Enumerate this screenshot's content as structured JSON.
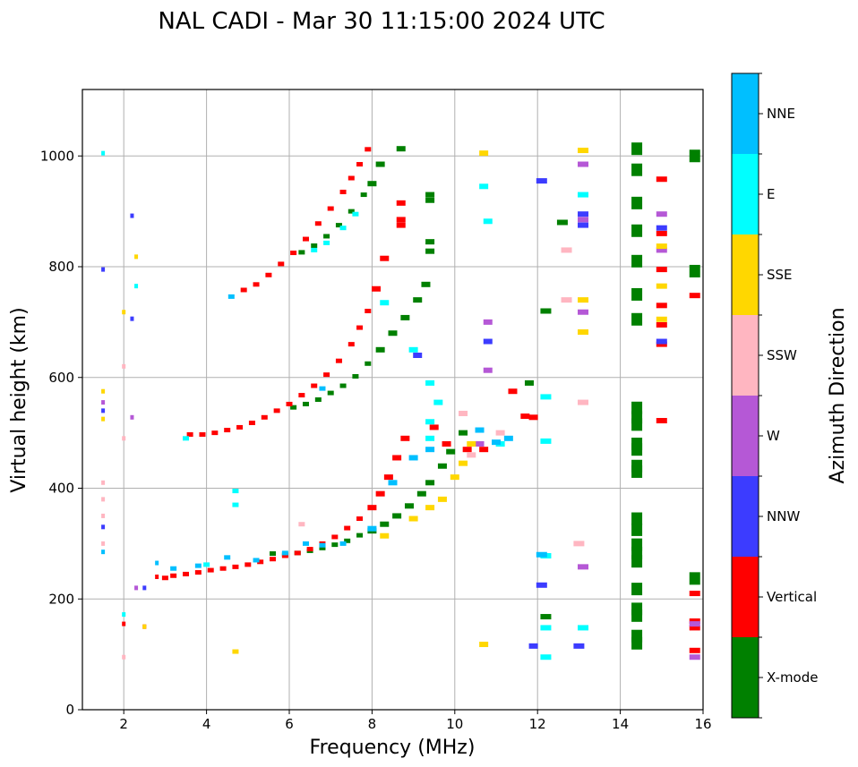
{
  "chart_data": {
    "type": "scatter",
    "subtype": "ionogram",
    "title": "NAL CADI - Mar 30 11:15:00 2024 UTC",
    "xlabel": "Frequency (MHz)",
    "ylabel": "Virtual height (km)",
    "xlim": [
      1,
      16
    ],
    "ylim": [
      0,
      1120
    ],
    "xticks": [
      2,
      4,
      6,
      8,
      10,
      12,
      14,
      16
    ],
    "yticks": [
      0,
      200,
      400,
      600,
      800,
      1000
    ],
    "grid": true,
    "colorbar": {
      "label": "Azimuth Direction",
      "placement": "right",
      "categories": [
        {
          "name": "X-mode",
          "color": "#008000"
        },
        {
          "name": "Vertical",
          "color": "#ff0000"
        },
        {
          "name": "NNW",
          "color": "#3c3cff"
        },
        {
          "name": "W",
          "color": "#b558d6"
        },
        {
          "name": "SSW",
          "color": "#ffb6c1"
        },
        {
          "name": "SSE",
          "color": "#ffd700"
        },
        {
          "name": "E",
          "color": "#00ffff"
        },
        {
          "name": "NNE",
          "color": "#00bfff"
        }
      ]
    },
    "series": [
      {
        "name": "X-mode",
        "points": [
          [
            5.6,
            282
          ],
          [
            5.9,
            280
          ],
          [
            6.2,
            283
          ],
          [
            6.5,
            287
          ],
          [
            6.8,
            292
          ],
          [
            7.1,
            298
          ],
          [
            7.4,
            305
          ],
          [
            7.7,
            315
          ],
          [
            8.0,
            323
          ],
          [
            8.3,
            335
          ],
          [
            8.6,
            350
          ],
          [
            8.9,
            368
          ],
          [
            9.2,
            390
          ],
          [
            9.4,
            410
          ],
          [
            9.7,
            440
          ],
          [
            9.9,
            466
          ],
          [
            10.2,
            500
          ],
          [
            6.1,
            546
          ],
          [
            6.4,
            552
          ],
          [
            6.7,
            560
          ],
          [
            7.0,
            572
          ],
          [
            7.3,
            585
          ],
          [
            7.6,
            602
          ],
          [
            7.9,
            625
          ],
          [
            8.2,
            650
          ],
          [
            8.5,
            680
          ],
          [
            8.8,
            708
          ],
          [
            9.1,
            740
          ],
          [
            9.3,
            768
          ],
          [
            6.3,
            826
          ],
          [
            6.6,
            838
          ],
          [
            6.9,
            855
          ],
          [
            7.2,
            875
          ],
          [
            7.5,
            900
          ],
          [
            7.8,
            930
          ],
          [
            8.0,
            950
          ],
          [
            8.2,
            985
          ],
          [
            9.4,
            845
          ],
          [
            9.4,
            828
          ],
          [
            9.4,
            930
          ],
          [
            9.4,
            920
          ],
          [
            8.7,
            1013
          ],
          [
            14.4,
            120
          ],
          [
            14.4,
            133
          ],
          [
            14.4,
            170
          ],
          [
            14.4,
            182
          ],
          [
            14.4,
            218
          ],
          [
            14.4,
            268
          ],
          [
            14.4,
            283
          ],
          [
            14.4,
            298
          ],
          [
            14.4,
            325
          ],
          [
            14.4,
            345
          ],
          [
            14.4,
            430
          ],
          [
            14.4,
            440
          ],
          [
            14.4,
            470
          ],
          [
            14.4,
            480
          ],
          [
            14.4,
            515
          ],
          [
            14.4,
            528
          ],
          [
            14.4,
            545
          ],
          [
            14.4,
            705
          ],
          [
            14.4,
            750
          ],
          [
            14.4,
            810
          ],
          [
            14.4,
            865
          ],
          [
            14.4,
            915
          ],
          [
            14.4,
            975
          ],
          [
            14.4,
            1013
          ],
          [
            15.8,
            237
          ],
          [
            15.8,
            792
          ],
          [
            15.8,
            1000
          ],
          [
            12.2,
            168
          ],
          [
            12.2,
            720
          ],
          [
            12.6,
            880
          ],
          [
            11.8,
            590
          ]
        ]
      },
      {
        "name": "Vertical",
        "points": [
          [
            2.8,
            240
          ],
          [
            3.0,
            238
          ],
          [
            3.2,
            242
          ],
          [
            3.5,
            245
          ],
          [
            3.8,
            248
          ],
          [
            4.1,
            252
          ],
          [
            4.4,
            255
          ],
          [
            4.7,
            258
          ],
          [
            5.0,
            262
          ],
          [
            5.3,
            267
          ],
          [
            5.6,
            272
          ],
          [
            5.9,
            278
          ],
          [
            6.2,
            283
          ],
          [
            6.5,
            290
          ],
          [
            6.8,
            300
          ],
          [
            7.1,
            312
          ],
          [
            7.4,
            328
          ],
          [
            7.7,
            345
          ],
          [
            8.0,
            365
          ],
          [
            8.2,
            390
          ],
          [
            8.4,
            420
          ],
          [
            8.6,
            455
          ],
          [
            8.8,
            490
          ],
          [
            3.6,
            497
          ],
          [
            3.9,
            497
          ],
          [
            4.2,
            500
          ],
          [
            4.5,
            505
          ],
          [
            4.8,
            510
          ],
          [
            5.1,
            518
          ],
          [
            5.4,
            528
          ],
          [
            5.7,
            540
          ],
          [
            6.0,
            552
          ],
          [
            6.3,
            568
          ],
          [
            6.6,
            585
          ],
          [
            6.9,
            605
          ],
          [
            7.2,
            630
          ],
          [
            7.5,
            660
          ],
          [
            7.7,
            690
          ],
          [
            7.9,
            720
          ],
          [
            8.1,
            760
          ],
          [
            8.3,
            815
          ],
          [
            4.9,
            758
          ],
          [
            5.2,
            768
          ],
          [
            5.5,
            785
          ],
          [
            5.8,
            805
          ],
          [
            6.1,
            825
          ],
          [
            6.4,
            850
          ],
          [
            6.7,
            878
          ],
          [
            7.0,
            905
          ],
          [
            7.3,
            935
          ],
          [
            7.5,
            960
          ],
          [
            7.7,
            985
          ],
          [
            7.9,
            1012
          ],
          [
            8.7,
            915
          ],
          [
            8.7,
            885
          ],
          [
            8.7,
            875
          ],
          [
            9.5,
            510
          ],
          [
            9.8,
            480
          ],
          [
            10.3,
            470
          ],
          [
            10.7,
            470
          ],
          [
            11.4,
            575
          ],
          [
            11.7,
            530
          ],
          [
            11.9,
            528
          ],
          [
            15.0,
            958
          ],
          [
            15.0,
            860
          ],
          [
            15.0,
            795
          ],
          [
            15.0,
            730
          ],
          [
            15.0,
            695
          ],
          [
            15.0,
            660
          ],
          [
            15.0,
            522
          ],
          [
            15.8,
            748
          ],
          [
            15.8,
            210
          ],
          [
            15.8,
            160
          ],
          [
            15.8,
            148
          ],
          [
            15.8,
            107
          ],
          [
            2.5,
            150
          ],
          [
            2.0,
            155
          ]
        ]
      },
      {
        "name": "NNW",
        "points": [
          [
            1.5,
            795
          ],
          [
            2.2,
            892
          ],
          [
            2.2,
            706
          ],
          [
            1.5,
            540
          ],
          [
            1.5,
            330
          ],
          [
            2.5,
            220
          ],
          [
            12.1,
            955
          ],
          [
            13.1,
            895
          ],
          [
            13.1,
            875
          ],
          [
            12.1,
            225
          ],
          [
            11.9,
            115
          ],
          [
            13.0,
            115
          ],
          [
            15.0,
            870
          ],
          [
            15.0,
            665
          ],
          [
            10.8,
            665
          ],
          [
            9.1,
            640
          ]
        ]
      },
      {
        "name": "W",
        "points": [
          [
            1.5,
            555
          ],
          [
            2.2,
            528
          ],
          [
            2.3,
            220
          ],
          [
            13.1,
            985
          ],
          [
            13.1,
            885
          ],
          [
            13.1,
            718
          ],
          [
            13.1,
            258
          ],
          [
            10.8,
            700
          ],
          [
            10.8,
            613
          ],
          [
            15.0,
            895
          ],
          [
            15.0,
            830
          ],
          [
            15.8,
            155
          ],
          [
            15.8,
            95
          ],
          [
            10.6,
            480
          ]
        ]
      },
      {
        "name": "SSW",
        "points": [
          [
            1.5,
            410
          ],
          [
            1.5,
            380
          ],
          [
            1.5,
            350
          ],
          [
            1.5,
            300
          ],
          [
            2.0,
            490
          ],
          [
            2.0,
            620
          ],
          [
            12.7,
            740
          ],
          [
            12.7,
            830
          ],
          [
            13.0,
            300
          ],
          [
            13.1,
            555
          ],
          [
            10.2,
            535
          ],
          [
            10.4,
            460
          ],
          [
            11.1,
            500
          ],
          [
            2.0,
            95
          ],
          [
            6.3,
            335
          ]
        ]
      },
      {
        "name": "SSE",
        "points": [
          [
            1.5,
            575
          ],
          [
            1.5,
            525
          ],
          [
            2.3,
            818
          ],
          [
            2.0,
            718
          ],
          [
            4.7,
            105
          ],
          [
            10.7,
            1005
          ],
          [
            13.1,
            1010
          ],
          [
            13.1,
            740
          ],
          [
            13.1,
            682
          ],
          [
            15.0,
            765
          ],
          [
            15.0,
            837
          ],
          [
            15.0,
            705
          ],
          [
            9.0,
            345
          ],
          [
            9.4,
            365
          ],
          [
            9.7,
            380
          ],
          [
            10.0,
            420
          ],
          [
            10.2,
            445
          ],
          [
            10.4,
            480
          ],
          [
            8.3,
            314
          ],
          [
            2.5,
            150
          ],
          [
            10.7,
            118
          ]
        ]
      },
      {
        "name": "E",
        "points": [
          [
            1.5,
            1005
          ],
          [
            2.3,
            765
          ],
          [
            2.0,
            172
          ],
          [
            4.7,
            395
          ],
          [
            4.7,
            370
          ],
          [
            3.5,
            490
          ],
          [
            4.0,
            262
          ],
          [
            6.6,
            830
          ],
          [
            6.9,
            843
          ],
          [
            7.3,
            870
          ],
          [
            7.6,
            895
          ],
          [
            8.3,
            735
          ],
          [
            9.0,
            650
          ],
          [
            9.4,
            520
          ],
          [
            9.4,
            490
          ],
          [
            10.7,
            945
          ],
          [
            10.8,
            882
          ],
          [
            12.2,
            565
          ],
          [
            12.2,
            485
          ],
          [
            12.2,
            278
          ],
          [
            12.2,
            148
          ],
          [
            13.1,
            148
          ],
          [
            12.2,
            95
          ],
          [
            13.1,
            930
          ],
          [
            9.4,
            590
          ],
          [
            9.6,
            555
          ],
          [
            11.1,
            480
          ]
        ]
      },
      {
        "name": "NNE",
        "points": [
          [
            1.5,
            285
          ],
          [
            2.8,
            265
          ],
          [
            3.2,
            255
          ],
          [
            3.8,
            260
          ],
          [
            4.5,
            275
          ],
          [
            5.2,
            270
          ],
          [
            5.9,
            283
          ],
          [
            6.4,
            300
          ],
          [
            6.8,
            297
          ],
          [
            7.3,
            300
          ],
          [
            8.0,
            327
          ],
          [
            8.5,
            410
          ],
          [
            9.0,
            455
          ],
          [
            9.4,
            470
          ],
          [
            10.6,
            505
          ],
          [
            11.0,
            483
          ],
          [
            11.3,
            490
          ],
          [
            12.1,
            280
          ],
          [
            4.6,
            746
          ],
          [
            6.8,
            580
          ]
        ]
      }
    ]
  }
}
